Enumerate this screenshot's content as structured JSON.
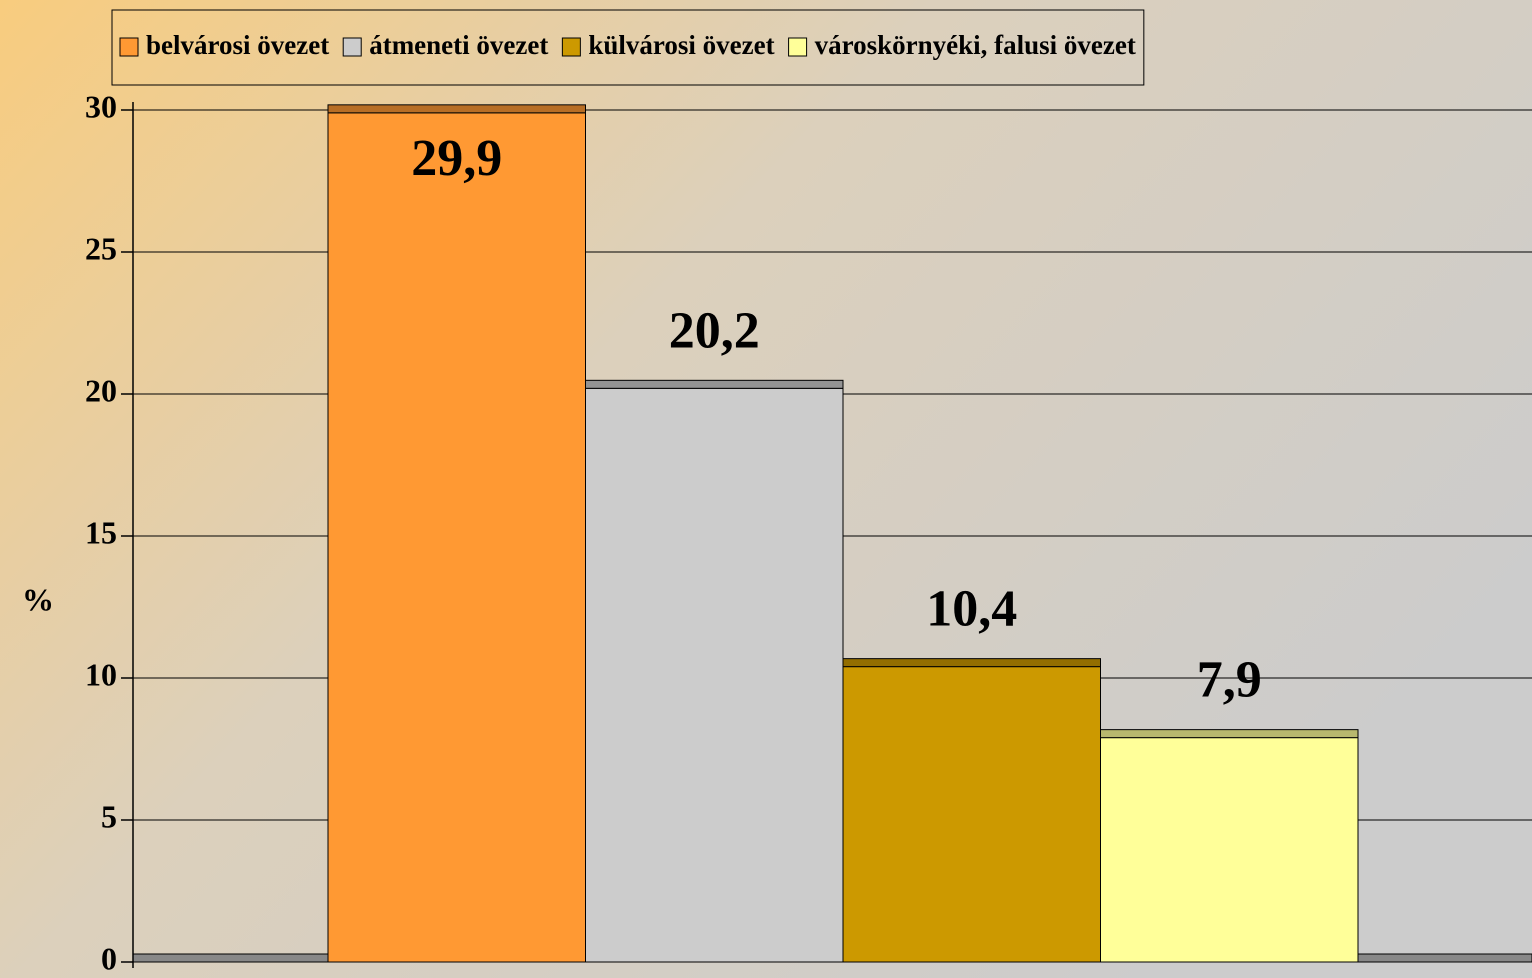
{
  "chart_data": {
    "type": "bar",
    "y_label": "%",
    "series": [
      {
        "name": "belvárosi övezet",
        "color": "#ff9933",
        "values": [
          29.9
        ],
        "value_labels": [
          "29,9"
        ]
      },
      {
        "name": "átmeneti övezet",
        "color": "#cccccc",
        "values": [
          20.2
        ],
        "value_labels": [
          "20,2"
        ]
      },
      {
        "name": "külvárosi övezet",
        "color": "#cc9900",
        "values": [
          10.4
        ],
        "value_labels": [
          "10,4"
        ]
      },
      {
        "name": "városkörnyéki, falusi övezet",
        "color": "#ffff99",
        "values": [
          7.9
        ],
        "value_labels": [
          "7,9"
        ]
      }
    ],
    "ylim": [
      0,
      30
    ],
    "yticks": [
      0,
      5,
      10,
      15,
      20,
      25,
      30
    ],
    "grid": true,
    "legend": "top"
  }
}
